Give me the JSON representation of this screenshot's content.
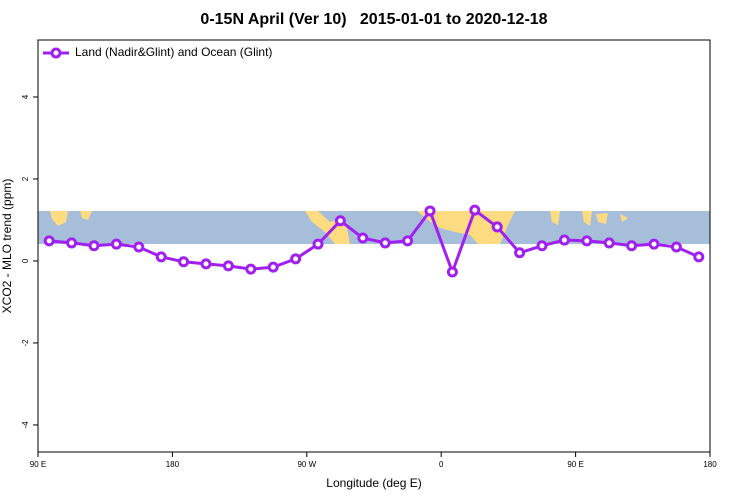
{
  "chart_data": {
    "type": "line",
    "title": "0-15N April (Ver 10)   2015-01-01 to 2020-12-18",
    "xlabel": "Longitude (deg E)",
    "ylabel": "XCO2 - MLO trend (ppm)",
    "x": [
      97.5,
      112.5,
      127.5,
      142.5,
      157.5,
      172.5,
      187.5,
      202.5,
      217.5,
      232.5,
      247.5,
      262.5,
      277.5,
      292.5,
      307.5,
      322.5,
      337.5,
      352.5,
      367.5,
      382.5,
      397.5,
      412.5,
      427.5,
      442.5,
      457.5,
      472.5,
      487.5,
      502.5,
      517.5,
      532.5
    ],
    "series": [
      {
        "name": "Land (Nadir&Glint) and Ocean (Glint)",
        "color": "#a020f0",
        "values": [
          0.49,
          0.44,
          0.37,
          0.41,
          0.34,
          0.1,
          -0.02,
          -0.07,
          -0.12,
          -0.2,
          -0.15,
          0.05,
          0.41,
          0.98,
          0.56,
          0.44,
          0.49,
          1.22,
          -0.27,
          1.24,
          0.83,
          0.2,
          0.37,
          0.51,
          0.49,
          0.44,
          0.37,
          0.41,
          0.34,
          0.1
        ]
      }
    ],
    "xlim": [
      90,
      540
    ],
    "xticks": [
      {
        "value": 90,
        "label": "90 E"
      },
      180,
      {
        "value": 270,
        "label": "90 W"
      },
      {
        "value": 360,
        "label": "0"
      },
      {
        "value": 450,
        "label": "90 E"
      },
      {
        "value": 540,
        "label": "180"
      }
    ],
    "ylim": [
      -4.66,
      5.39
    ],
    "yticks": [
      -4,
      -2,
      0,
      2,
      4
    ],
    "legend": "topleft"
  }
}
